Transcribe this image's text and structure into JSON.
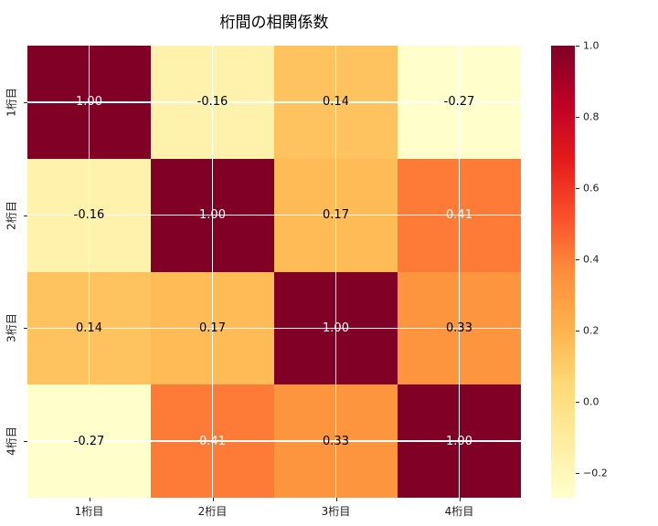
{
  "title": "桁間の相関係数",
  "chart_data": {
    "type": "heatmap",
    "title": "桁間の相関係数",
    "colormap": "YlOrRd",
    "categories": [
      "1桁目",
      "2桁目",
      "3桁目",
      "4桁目"
    ],
    "matrix": [
      [
        1.0,
        -0.16,
        0.14,
        -0.27
      ],
      [
        -0.16,
        1.0,
        0.17,
        0.41
      ],
      [
        0.14,
        0.17,
        1.0,
        0.33
      ],
      [
        -0.27,
        0.41,
        0.33,
        1.0
      ]
    ],
    "annotations": [
      [
        "1.00",
        "-0.16",
        "0.14",
        "-0.27"
      ],
      [
        "-0.16",
        "1.00",
        "0.17",
        "0.41"
      ],
      [
        "0.14",
        "0.17",
        "1.00",
        "0.33"
      ],
      [
        "-0.27",
        "0.41",
        "0.33",
        "1.00"
      ]
    ],
    "cell_colors": [
      [
        "#800026",
        "#fff2ad",
        "#fec25e",
        "#ffffcc"
      ],
      [
        "#fff2ad",
        "#800026",
        "#febb56",
        "#fd7b37"
      ],
      [
        "#fec25e",
        "#febb56",
        "#800026",
        "#fd953f"
      ],
      [
        "#ffffcc",
        "#fd7b37",
        "#fd953f",
        "#800026"
      ]
    ],
    "text_colors": [
      [
        "#ffffff",
        "#000000",
        "#000000",
        "#000000"
      ],
      [
        "#000000",
        "#ffffff",
        "#000000",
        "#ffffff"
      ],
      [
        "#000000",
        "#000000",
        "#ffffff",
        "#000000"
      ],
      [
        "#000000",
        "#ffffff",
        "#000000",
        "#ffffff"
      ]
    ],
    "vmin": -0.27,
    "vmax": 1.0,
    "grid": true,
    "grid_color": "#ffffff",
    "legend_position": "right-colorbar",
    "colorbar": {
      "gradient_stops": [
        "#800026",
        "#bd0026",
        "#e31a1c",
        "#fc4e2a",
        "#fd8d3c",
        "#feb24c",
        "#fed976",
        "#ffeda0",
        "#ffffcc"
      ],
      "ticks": [
        {
          "value": 1.0,
          "label": "1.0"
        },
        {
          "value": 0.8,
          "label": "0.8"
        },
        {
          "value": 0.6,
          "label": "0.6"
        },
        {
          "value": 0.4,
          "label": "0.4"
        },
        {
          "value": 0.2,
          "label": "0.2"
        },
        {
          "value": 0.0,
          "label": "0.0"
        },
        {
          "value": -0.2,
          "label": "−0.2"
        }
      ]
    }
  }
}
